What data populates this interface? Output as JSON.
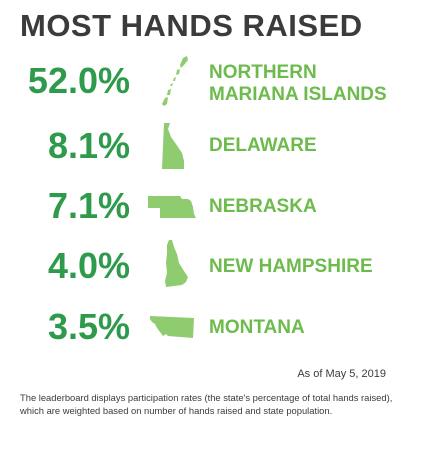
{
  "title": "MOST HANDS RAISED",
  "colors": {
    "title": "#3b3b3b",
    "percentage": "#2f9a4c",
    "state_name": "#6dbb4c",
    "state_shape": "#8fcc6f"
  },
  "leaderboard": [
    {
      "percentage": "52.0%",
      "name_line1": "NORTHERN",
      "name_line2": "MARIANA ISLANDS",
      "shape_icon": "northern-mariana-islands-shape-icon"
    },
    {
      "percentage": "8.1%",
      "name_line1": "DELAWARE",
      "shape_icon": "delaware-shape-icon"
    },
    {
      "percentage": "7.1%",
      "name_line1": "NEBRASKA",
      "shape_icon": "nebraska-shape-icon"
    },
    {
      "percentage": "4.0%",
      "name_line1": "NEW HAMPSHIRE",
      "shape_icon": "new-hampshire-shape-icon"
    },
    {
      "percentage": "3.5%",
      "name_line1": "MONTANA",
      "shape_icon": "montana-shape-icon"
    }
  ],
  "as_of": "As of May 5, 2019",
  "footnote": "The leaderboard displays participation rates (the state's percentage of total hands raised), which are weighted based on number of hands raised and state population."
}
